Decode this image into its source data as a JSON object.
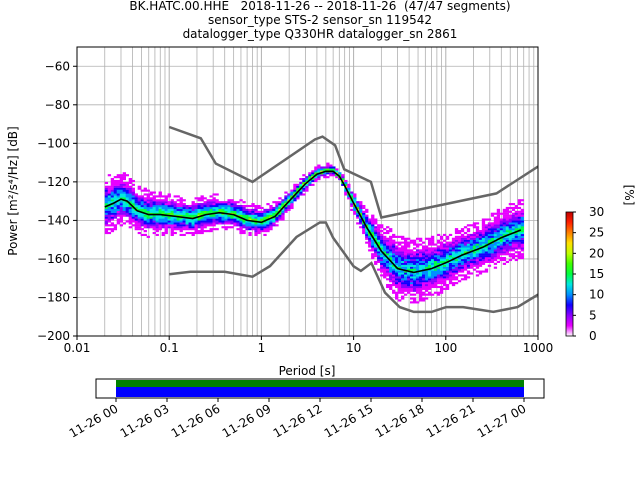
{
  "header": {
    "line1": "BK.HATC.00.HHE   2018-11-26 -- 2018-11-26  (47/47 segments)",
    "line2": "sensor_type STS-2 sensor_sn 119542",
    "line3": "datalogger_type Q330HR datalogger_sn 2861"
  },
  "chart_data": {
    "type": "heatmap",
    "title": "BK.HATC.00.HHE   2018-11-26 -- 2018-11-26  (47/47 segments)",
    "xlabel": "Period [s]",
    "ylabel": "Power [m²/s⁴/Hz] [dB]",
    "x_scale": "log",
    "xlim": [
      0.01,
      1000
    ],
    "ylim": [
      -200,
      -50
    ],
    "x_ticks": [
      0.01,
      0.1,
      1,
      10,
      100,
      1000
    ],
    "x_tick_labels": [
      "0.01",
      "0.1",
      "1",
      "10",
      "100",
      "1000"
    ],
    "y_ticks": [
      -200,
      -180,
      -160,
      -140,
      -120,
      -100,
      -80,
      -60
    ],
    "grid": true,
    "noise_models": {
      "high": {
        "color": "#666666",
        "x": [
          0.1,
          0.22,
          0.32,
          0.8,
          3.8,
          4.6,
          6.3,
          7.9,
          15.4,
          20,
          354.8,
          1000
        ],
        "y": [
          -91.5,
          -97.4,
          -110.5,
          -120,
          -98,
          -96.5,
          -101,
          -113.5,
          -120,
          -138.5,
          -126,
          -112
        ]
      },
      "low": {
        "color": "#666666",
        "x": [
          0.1,
          0.17,
          0.4,
          0.8,
          1.24,
          2.4,
          4.3,
          5,
          6,
          10,
          12,
          15.6,
          21.9,
          31.6,
          45,
          70,
          101,
          154,
          328,
          600,
          1000
        ],
        "y": [
          -168,
          -166.7,
          -166.7,
          -169.2,
          -163.7,
          -148.6,
          -141.1,
          -141.1,
          -149,
          -163.8,
          -166.2,
          -162.1,
          -177.5,
          -185,
          -187.5,
          -187.5,
          -185,
          -185,
          -187.5,
          -185,
          -178.5
        ]
      }
    },
    "median": {
      "color": "#000000",
      "x": [
        0.02,
        0.025,
        0.03,
        0.035,
        0.045,
        0.06,
        0.08,
        0.12,
        0.18,
        0.25,
        0.35,
        0.5,
        0.7,
        1,
        1.4,
        2,
        3,
        4,
        5,
        6,
        7,
        8,
        10,
        14,
        20,
        30,
        45,
        70,
        100,
        150,
        250,
        400,
        650
      ],
      "y": [
        -133,
        -131,
        -129,
        -130,
        -135,
        -137,
        -137,
        -138,
        -139,
        -137,
        -136,
        -137,
        -140,
        -141,
        -138,
        -130,
        -121,
        -116,
        -114.5,
        -114.5,
        -117,
        -122,
        -131,
        -144,
        -156,
        -165,
        -167,
        -165,
        -162,
        -158,
        -154,
        -149,
        -145
      ]
    },
    "pdf_colorbar": {
      "label": "[%]",
      "range": [
        0,
        30
      ],
      "ticks": [
        0,
        5,
        10,
        15,
        20,
        25,
        30
      ],
      "colors": [
        "#ffffff",
        "#e800ff",
        "#8a00ff",
        "#1200ff",
        "#0090ff",
        "#00e8e0",
        "#00ff40",
        "#40ff00",
        "#c0ff00",
        "#ffe000",
        "#ff8000",
        "#ff2000",
        "#c00000"
      ]
    },
    "coverage": {
      "x_tick_labels": [
        "11-26 00",
        "11-26 03",
        "11-26 06",
        "11-26 09",
        "11-26 12",
        "11-26 15",
        "11-26 18",
        "11-26 21",
        "11-27 00"
      ],
      "start": "11-26 00",
      "end": "11-27 00",
      "bar_colors": [
        "#008000",
        "#0000ff"
      ]
    }
  }
}
